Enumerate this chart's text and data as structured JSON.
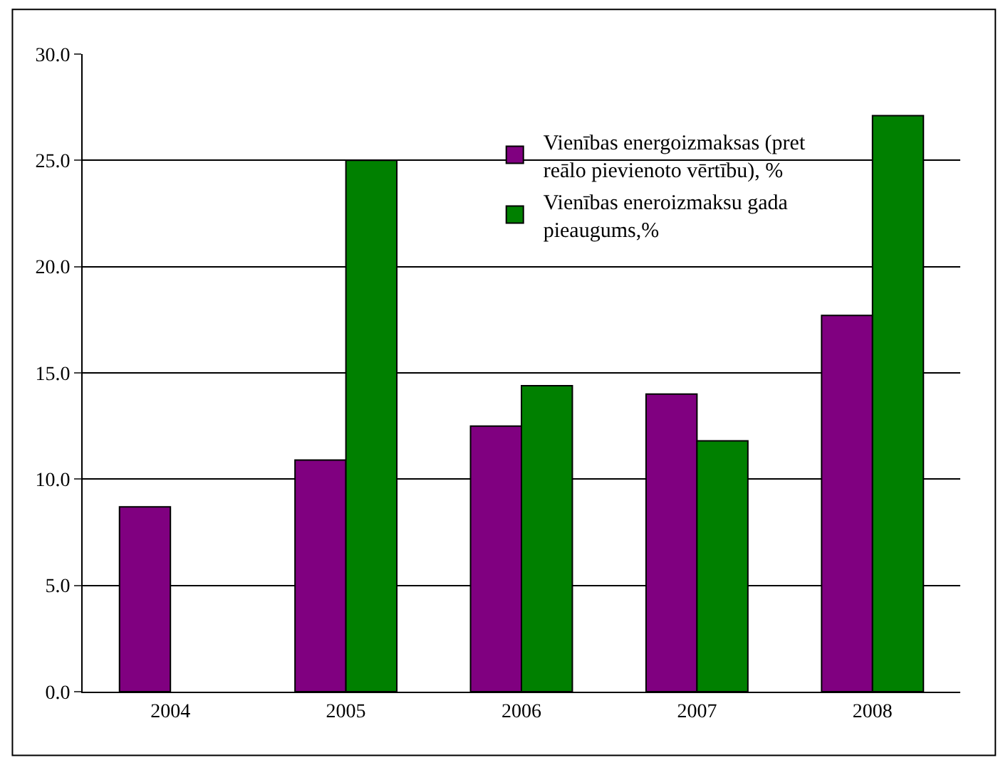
{
  "chart_data": {
    "type": "bar",
    "categories": [
      "2004",
      "2005",
      "2006",
      "2007",
      "2008"
    ],
    "series": [
      {
        "name": "Vienības energoizmaksas (pret reālo pievienoto vērtību), %",
        "color": "#800080",
        "values": [
          8.7,
          10.9,
          12.5,
          14.0,
          17.7
        ]
      },
      {
        "name": "Vienības eneroizmaksu gada pieaugums,%",
        "color": "#008000",
        "values": [
          null,
          25.0,
          14.4,
          11.8,
          27.1
        ]
      }
    ],
    "ylim": [
      0,
      30
    ],
    "yticks": [
      {
        "value": 0,
        "label": "0.0"
      },
      {
        "value": 5,
        "label": "5.0"
      },
      {
        "value": 10,
        "label": "10.0"
      },
      {
        "value": 15,
        "label": "15.0"
      },
      {
        "value": 20,
        "label": "20.0"
      },
      {
        "value": 25,
        "label": "25.0"
      },
      {
        "value": 30,
        "label": "30.0"
      }
    ],
    "grid": "y",
    "legend": "top right"
  }
}
